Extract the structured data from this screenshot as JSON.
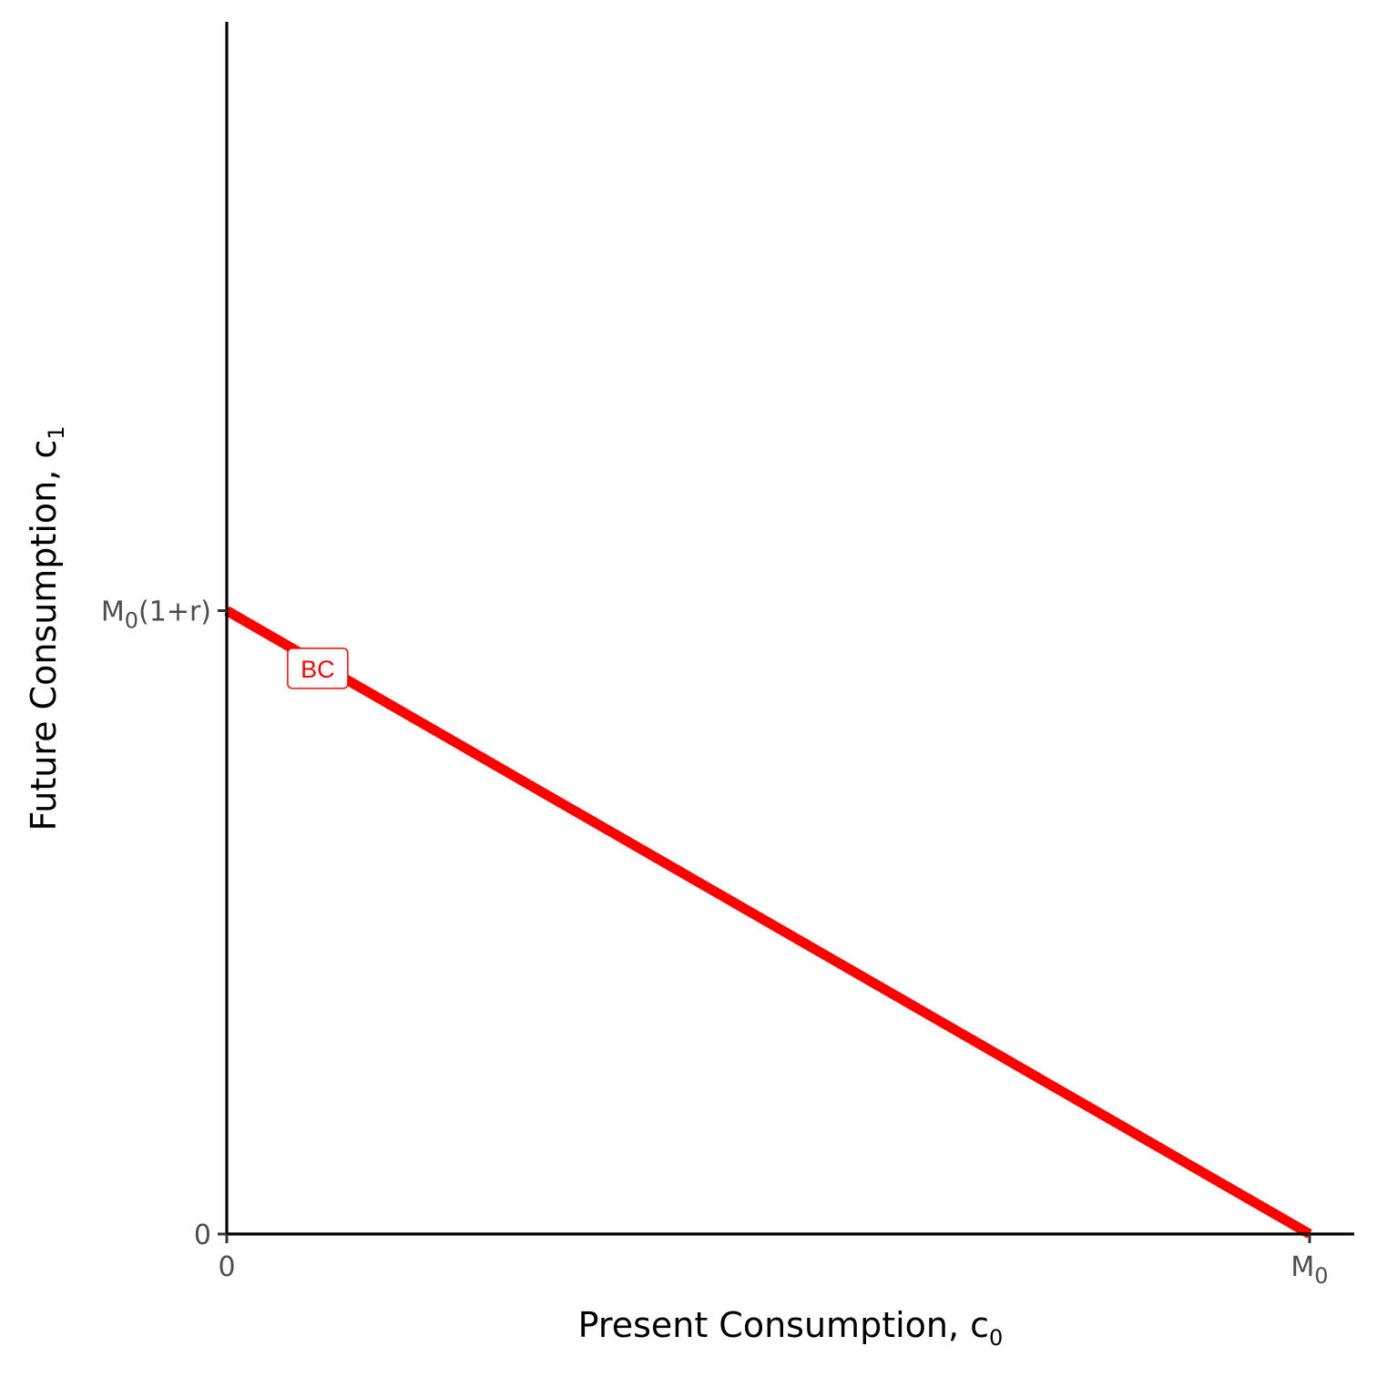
{
  "chart_data": {
    "type": "line",
    "xlabel": {
      "main": "Present Consumption, c",
      "sub": "0"
    },
    "ylabel": {
      "main": "Future Consumption, c",
      "sub": "1"
    },
    "xlim": [
      0,
      1
    ],
    "ylim": [
      0,
      1.05
    ],
    "x_ticks": [
      {
        "value": 0,
        "label": "0"
      },
      {
        "value": 1,
        "label": "M",
        "sub": "0"
      }
    ],
    "y_ticks": [
      {
        "value": 0,
        "label": "0"
      },
      {
        "value": 0.54,
        "label": "M",
        "sub": "0",
        "suffix": "(1+r)"
      }
    ],
    "series": [
      {
        "name": "BC",
        "color": "#ff0000",
        "points": [
          [
            0,
            0.54
          ],
          [
            1,
            0
          ]
        ]
      }
    ],
    "annotations": [
      {
        "text": "BC",
        "x": 0.084,
        "y": 0.49,
        "color": "#ff0000"
      }
    ],
    "grid": false,
    "legend": "none"
  }
}
